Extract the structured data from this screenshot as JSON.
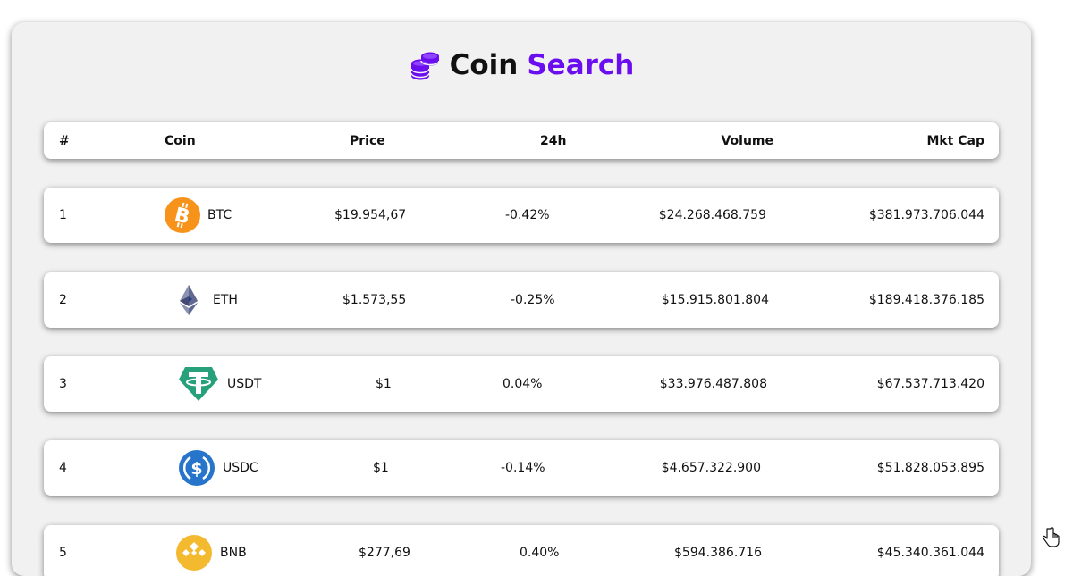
{
  "app": {
    "title_word1": "Coin",
    "title_word2": "Search",
    "icon": "coins-icon",
    "accent": "#6a0ef0"
  },
  "table": {
    "headers": {
      "rank": "#",
      "coin": "Coin",
      "price": "Price",
      "change": "24h",
      "volume": "Volume",
      "mkt_cap": "Mkt Cap"
    },
    "rows": [
      {
        "rank": "1",
        "symbol": "BTC",
        "price": "$19.954,67",
        "change": "-0.42%",
        "volume": "$24.268.468.759",
        "mkt_cap": "$381.973.706.044",
        "icon": "bitcoin-icon",
        "color": "#f7931a"
      },
      {
        "rank": "2",
        "symbol": "ETH",
        "price": "$1.573,55",
        "change": "-0.25%",
        "volume": "$15.915.801.804",
        "mkt_cap": "$189.418.376.185",
        "icon": "ethereum-icon",
        "color": "#627eea"
      },
      {
        "rank": "3",
        "symbol": "USDT",
        "price": "$1",
        "change": "0.04%",
        "volume": "$33.976.487.808",
        "mkt_cap": "$67.537.713.420",
        "icon": "tether-icon",
        "color": "#26a17b"
      },
      {
        "rank": "4",
        "symbol": "USDC",
        "price": "$1",
        "change": "-0.14%",
        "volume": "$4.657.322.900",
        "mkt_cap": "$51.828.053.895",
        "icon": "usdc-icon",
        "color": "#2775ca"
      },
      {
        "rank": "5",
        "symbol": "BNB",
        "price": "$277,69",
        "change": "0.40%",
        "volume": "$594.386.716",
        "mkt_cap": "$45.340.361.044",
        "icon": "bnb-icon",
        "color": "#f3ba2f"
      }
    ]
  },
  "cursor": "hand-pointer-icon"
}
